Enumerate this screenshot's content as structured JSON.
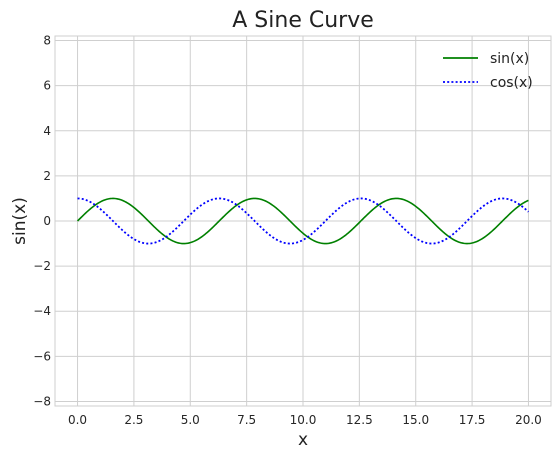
{
  "chart_data": {
    "type": "line",
    "title": "A Sine Curve",
    "xlabel": "x",
    "ylabel": "sin(x)",
    "xlim": [
      -1,
      21
    ],
    "ylim": [
      -8.2,
      8.2
    ],
    "xticks": [
      0,
      2.5,
      5,
      7.5,
      10,
      12.5,
      15,
      17.5,
      20
    ],
    "xtick_labels": [
      "0.0",
      "2.5",
      "5.0",
      "7.5",
      "10.0",
      "12.5",
      "15.0",
      "17.5",
      "20.0"
    ],
    "yticks": [
      -8,
      -6,
      -4,
      -2,
      0,
      2,
      4,
      6,
      8
    ],
    "ytick_labels": [
      "−8",
      "−6",
      "−4",
      "−2",
      "0",
      "2",
      "4",
      "6",
      "8"
    ],
    "grid": true,
    "legend_position": "top-right",
    "series": [
      {
        "name": "sin(x)",
        "color": "#008000",
        "style": "solid",
        "x": [
          0,
          0.5,
          1,
          1.5,
          2,
          2.5,
          3,
          3.5,
          4,
          4.5,
          5,
          5.5,
          6,
          6.5,
          7,
          7.5,
          8,
          8.5,
          9,
          9.5,
          10,
          10.5,
          11,
          11.5,
          12,
          12.5,
          13,
          13.5,
          14,
          14.5,
          15,
          15.5,
          16,
          16.5,
          17,
          17.5,
          18,
          18.5,
          19,
          19.5,
          20
        ],
        "y": [
          0,
          0.479,
          0.841,
          0.997,
          0.909,
          0.598,
          0.141,
          -0.351,
          -0.757,
          -0.978,
          -0.959,
          -0.706,
          -0.279,
          0.215,
          0.657,
          0.938,
          0.989,
          0.798,
          0.412,
          -0.075,
          -0.544,
          -0.88,
          -1.0,
          -0.875,
          -0.537,
          -0.066,
          0.42,
          0.803,
          0.991,
          0.935,
          0.65,
          0.206,
          -0.288,
          -0.712,
          -0.961,
          -0.976,
          -0.751,
          -0.343,
          0.15,
          0.604,
          0.913
        ]
      },
      {
        "name": "cos(x)",
        "color": "#0000ff",
        "style": "dotted",
        "x": [
          0,
          0.5,
          1,
          1.5,
          2,
          2.5,
          3,
          3.5,
          4,
          4.5,
          5,
          5.5,
          6,
          6.5,
          7,
          7.5,
          8,
          8.5,
          9,
          9.5,
          10,
          10.5,
          11,
          11.5,
          12,
          12.5,
          13,
          13.5,
          14,
          14.5,
          15,
          15.5,
          16,
          16.5,
          17,
          17.5,
          18,
          18.5,
          19,
          19.5,
          20
        ],
        "y": [
          1.0,
          0.878,
          0.54,
          0.071,
          -0.416,
          -0.801,
          -0.99,
          -0.936,
          -0.654,
          -0.211,
          0.284,
          0.709,
          0.96,
          0.977,
          0.754,
          0.347,
          -0.146,
          -0.602,
          -0.911,
          -0.997,
          -0.839,
          -0.476,
          0.004,
          0.483,
          0.844,
          0.998,
          0.907,
          0.595,
          0.137,
          -0.355,
          -0.76,
          -0.979,
          -0.958,
          -0.703,
          -0.275,
          0.219,
          0.66,
          0.939,
          0.989,
          0.795,
          0.408
        ]
      }
    ]
  }
}
